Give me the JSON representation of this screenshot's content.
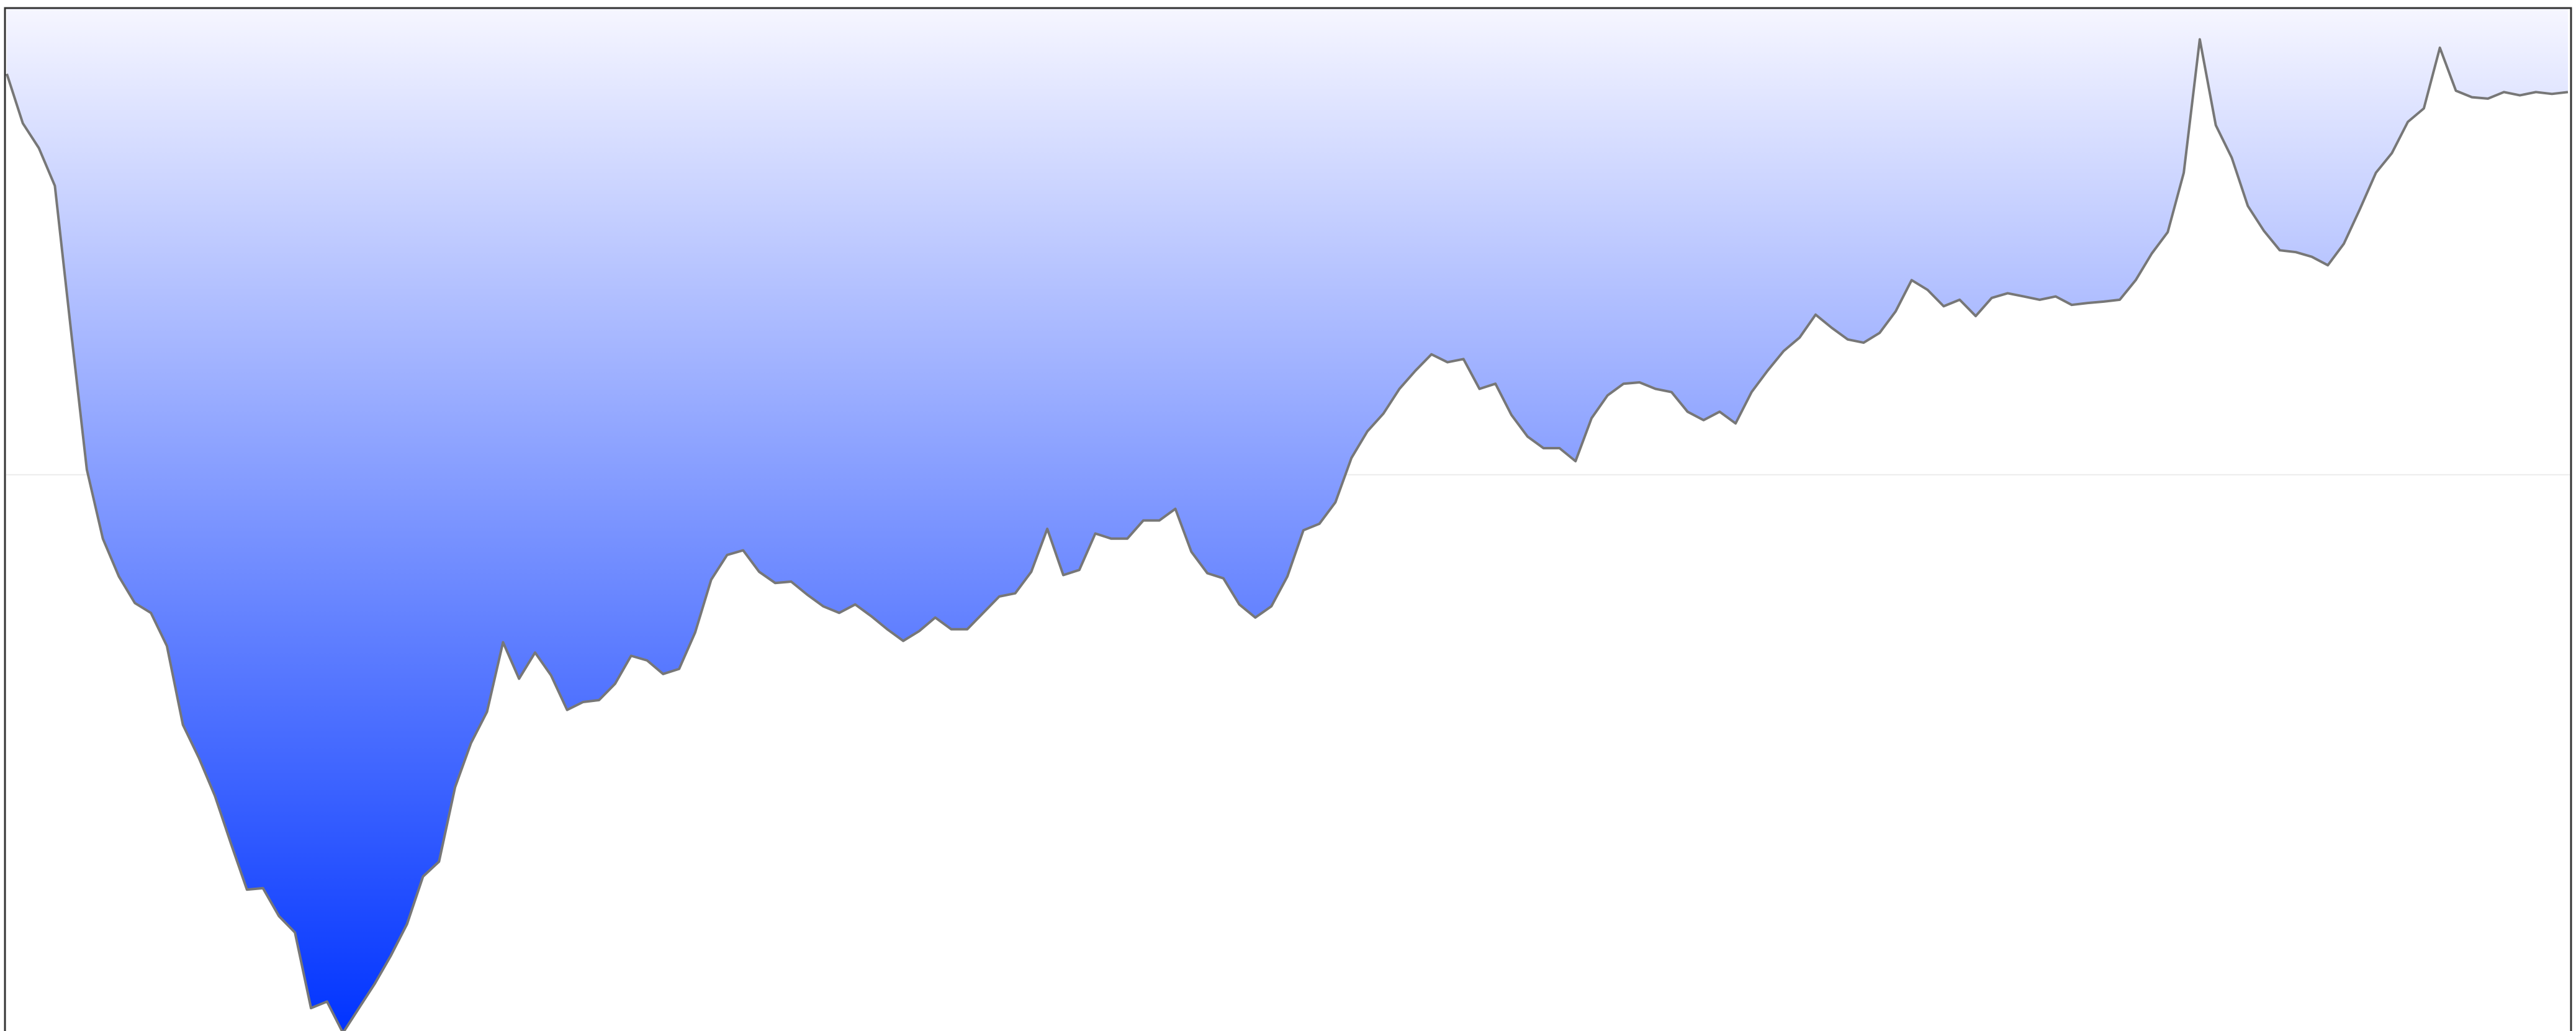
{
  "chart_data": {
    "type": "drawdown",
    "values": [
      -1.41,
      -2.47,
      -3.0,
      -3.81,
      -6.89,
      -9.89,
      -11.37,
      -12.18,
      -12.75,
      -12.96,
      -13.67,
      -15.36,
      -16.07,
      -16.88,
      -17.9,
      -18.89,
      -18.86,
      -19.46,
      -19.81,
      -21.43,
      -21.29,
      -21.96,
      -21.43,
      -20.9,
      -20.3,
      -19.63,
      -18.61,
      -18.29,
      -16.7,
      -15.75,
      -15.08,
      -13.59,
      -14.37,
      -13.81,
      -14.3,
      -15.04,
      -14.87,
      -14.83,
      -14.48,
      -13.88,
      -13.98,
      -14.27,
      -14.16,
      -13.38,
      -12.25,
      -11.72,
      -11.62,
      -12.08,
      -12.32,
      -12.29,
      -12.57,
      -12.82,
      -12.96,
      -12.78,
      -13.03,
      -13.31,
      -13.56,
      -13.35,
      -13.06,
      -13.31,
      -13.31,
      -12.96,
      -12.61,
      -12.54,
      -12.08,
      -11.16,
      -12.15,
      -12.04,
      -11.26,
      -11.37,
      -11.37,
      -10.98,
      -10.98,
      -10.73,
      -11.65,
      -12.11,
      -12.22,
      -12.78,
      -13.06,
      -12.82,
      -12.18,
      -11.19,
      -11.05,
      -10.59,
      -9.64,
      -9.07,
      -8.69,
      -8.16,
      -7.77,
      -7.42,
      -7.59,
      -7.52,
      -8.16,
      -8.05,
      -8.72,
      -9.18,
      -9.43,
      -9.43,
      -9.71,
      -8.79,
      -8.3,
      -8.05,
      -8.02,
      -8.16,
      -8.23,
      -8.65,
      -8.83,
      -8.65,
      -8.9,
      -8.23,
      -7.77,
      -7.35,
      -7.06,
      -6.57,
      -6.85,
      -7.1,
      -7.17,
      -6.96,
      -6.5,
      -5.83,
      -6.04,
      -6.39,
      -6.25,
      -6.6,
      -6.21,
      -6.11,
      -6.18,
      -6.25,
      -6.18,
      -6.36,
      -6.32,
      -6.29,
      -6.25,
      -5.83,
      -5.26,
      -4.8,
      -3.53,
      -0.67,
      -2.51,
      -3.21,
      -4.24,
      -4.77,
      -5.19,
      -5.23,
      -5.33,
      -5.51,
      -5.05,
      -4.31,
      -3.53,
      -3.11,
      -2.44,
      -2.15,
      -0.85,
      -1.77,
      -1.91,
      -1.94,
      -1.8,
      -1.87,
      -1.8,
      -1.84,
      -1.8
    ],
    "color": "#0033ff",
    "line_color": "#777777",
    "ylim": [
      -22,
      0
    ],
    "yticks": [
      -10
    ],
    "grid": true,
    "tick_labels": false
  }
}
